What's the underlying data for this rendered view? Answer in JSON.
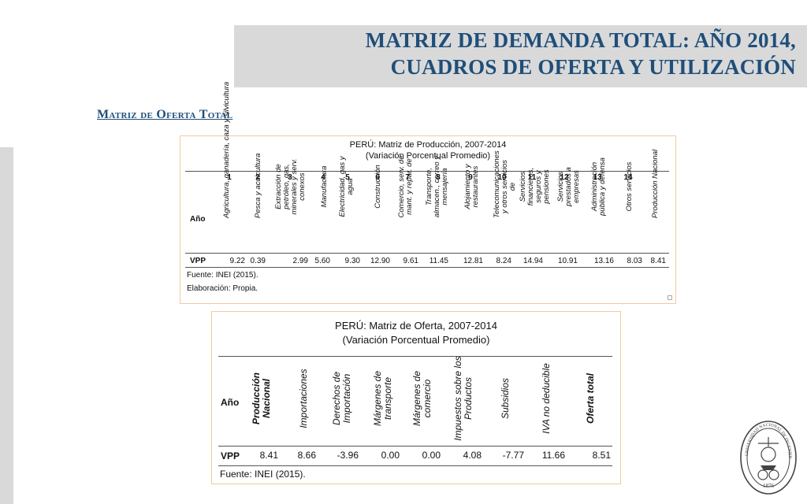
{
  "header": {
    "title_line1": "MATRIZ DE DEMANDA TOTAL: AÑO 2014,",
    "title_line2": "CUADROS DE OFERTA Y UTILIZACIÓN"
  },
  "section_title": "Matriz de Oferta Total",
  "production_table": {
    "title": "PERÚ: Matriz de Producción, 2007-2014",
    "subtitle": "(Variación Porcentual Promedio)",
    "row_header": "Año",
    "column_numbers": [
      "1",
      "2",
      "3",
      "4",
      "5",
      "6",
      "7",
      "8",
      "9",
      "10",
      "11",
      "12",
      "13",
      "14"
    ],
    "columns": [
      "Agricultura, ganadería, caza y silvicultura",
      "Pesca y acuicultura",
      "Extracción de petróleo, gas, minerales y serv. conexos",
      "Manufactura",
      "Electricidad, gas y agua",
      "Construcción",
      "Comercio, serv. de mant. y repar. de",
      "Transporte, almacen., correo y mensajería",
      "Alojamiento y restaurantes",
      "Telecomunicaciones y otros servicios de",
      "Servicios financieros, seguros y pensiones",
      "Servicios prestados a empresas",
      "Administración pública y defensa",
      "Otros servicios",
      "Producción Nacional"
    ],
    "row_label": "VPP",
    "values": [
      "9.22",
      "0.39",
      "2.99",
      "5.60",
      "9.30",
      "12.90",
      "9.61",
      "11.45",
      "12.81",
      "8.24",
      "14.94",
      "10.91",
      "13.16",
      "8.03",
      "8.41"
    ],
    "source": "Fuente: INEI (2015).",
    "elaboration": "Elaboración: Propia."
  },
  "supply_table": {
    "title": "PERÚ: Matriz de Oferta, 2007-2014",
    "subtitle": "(Variación Porcentual Promedio)",
    "row_header": "Año",
    "columns": [
      "Producción Nacional",
      "Importaciones",
      "Derechos de Importación",
      "Márgenes de transporte",
      "Márgenes de comercio",
      "Impuestos sobre los Productos",
      "Subsidios",
      "IVA no deducible",
      "Oferta total"
    ],
    "row_label": "VPP",
    "values": [
      "8.41",
      "8.66",
      "-3.96",
      "0.00",
      "0.00",
      "4.08",
      "-7.77",
      "11.66",
      "8.51"
    ],
    "source": "Fuente: INEI (2015)."
  },
  "seal": {
    "text_top": "UNIVERSIDAD NACIONAL DE INGENIERIA",
    "text_year": "1876",
    "colors": {
      "ink": "#444444"
    }
  },
  "colors": {
    "title": "#1f4e79",
    "band": "#d9d9d9",
    "panel_border": "#f3c9a0"
  }
}
